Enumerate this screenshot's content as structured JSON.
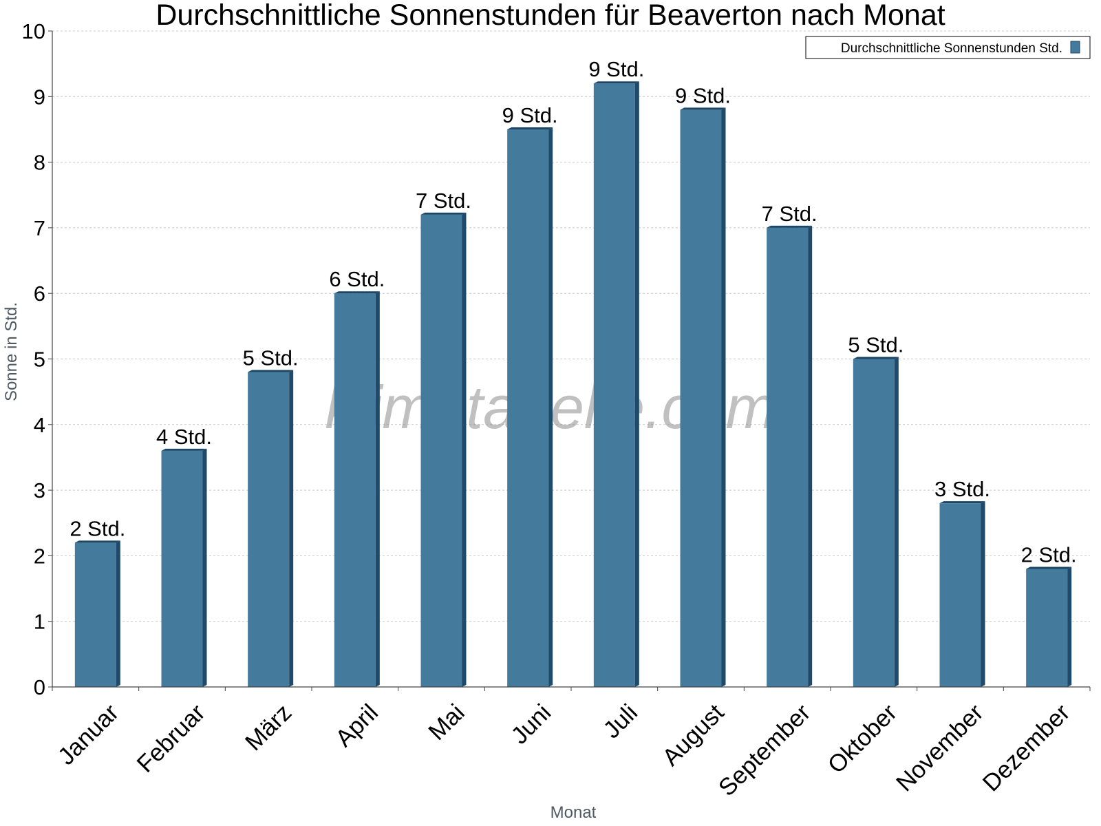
{
  "colors": {
    "bar_front": "#447a9c",
    "bar_side": "#1f4a6a",
    "bar_top": "#1c4666",
    "grid": "#c8c8c8",
    "axis": "#444444"
  },
  "watermark": "klimatabelle.com",
  "chart_data": {
    "type": "bar",
    "title": "Durchschnittliche Sonnenstunden für Beaverton nach Monat",
    "xlabel": "Monat",
    "ylabel": "Sonne in Std.",
    "ylim": [
      0,
      10
    ],
    "yticks": [
      0,
      1,
      2,
      3,
      4,
      5,
      6,
      7,
      8,
      9,
      10
    ],
    "grid": true,
    "legend_position": "top-right",
    "categories": [
      "Januar",
      "Februar",
      "März",
      "April",
      "Mai",
      "Juni",
      "Juli",
      "August",
      "September",
      "Oktober",
      "November",
      "Dezember"
    ],
    "series": [
      {
        "name": "Durchschnittliche Sonnenstunden Std.",
        "values": [
          2.2,
          3.6,
          4.8,
          6.0,
          7.2,
          8.5,
          9.2,
          8.8,
          7.0,
          5.0,
          2.8,
          1.8
        ],
        "labels": [
          "2 Std.",
          "4 Std.",
          "5 Std.",
          "6 Std.",
          "7 Std.",
          "9 Std.",
          "9 Std.",
          "9 Std.",
          "7 Std.",
          "5 Std.",
          "3 Std.",
          "2 Std."
        ]
      }
    ]
  }
}
